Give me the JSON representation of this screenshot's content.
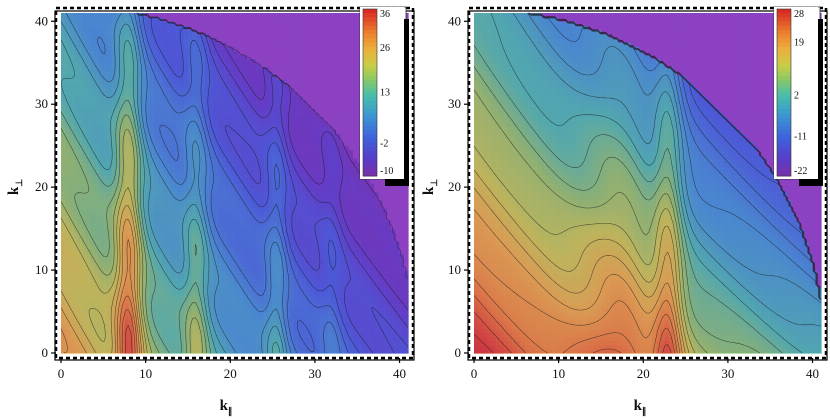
{
  "chart_data": [
    {
      "type": "heatmap",
      "subtype": "contour",
      "title": "",
      "xlabel": "k",
      "xlabel_subscript": "∥",
      "ylabel": "k",
      "ylabel_subscript": "⊥",
      "xlim": [
        0,
        41
      ],
      "ylim": [
        0,
        41
      ],
      "xticks": [
        0,
        10,
        20,
        30,
        40
      ],
      "yticks": [
        0,
        10,
        20,
        30,
        40
      ],
      "colorbar": {
        "ticks": [
          36,
          26,
          13,
          -2,
          -10
        ],
        "range": [
          -10,
          36
        ]
      },
      "features": {
        "ridges": [
          {
            "x": 8,
            "amplitude": 14,
            "width": 1.1
          },
          {
            "x": 16,
            "amplitude": 7,
            "width": 1.0
          },
          {
            "x": 25.5,
            "amplitude": 6,
            "width": 0.9
          },
          {
            "x": 32,
            "amplitude": 3,
            "width": 0.9
          }
        ],
        "cutoff_radius": 42,
        "diagonal_cutoff": 67.5
      }
    },
    {
      "type": "heatmap",
      "subtype": "contour",
      "title": "",
      "xlabel": "k",
      "xlabel_subscript": "∥",
      "ylabel": "k",
      "ylabel_subscript": "⊥",
      "xlim": [
        0,
        41
      ],
      "ylim": [
        0,
        41
      ],
      "xticks": [
        0,
        10,
        20,
        30,
        40
      ],
      "yticks": [
        0,
        10,
        20,
        30,
        40
      ],
      "colorbar": {
        "ticks": [
          28,
          19,
          2,
          -11,
          -22
        ],
        "range": [
          -22,
          28
        ]
      },
      "features": {
        "ridges": [
          {
            "x": 17.5,
            "amplitude": 8,
            "width": 3.2
          },
          {
            "x": 23,
            "amplitude": 11,
            "width": 1.2
          }
        ],
        "cutoff_radius": 41.5,
        "diagonal_cutoff": 58
      }
    }
  ]
}
